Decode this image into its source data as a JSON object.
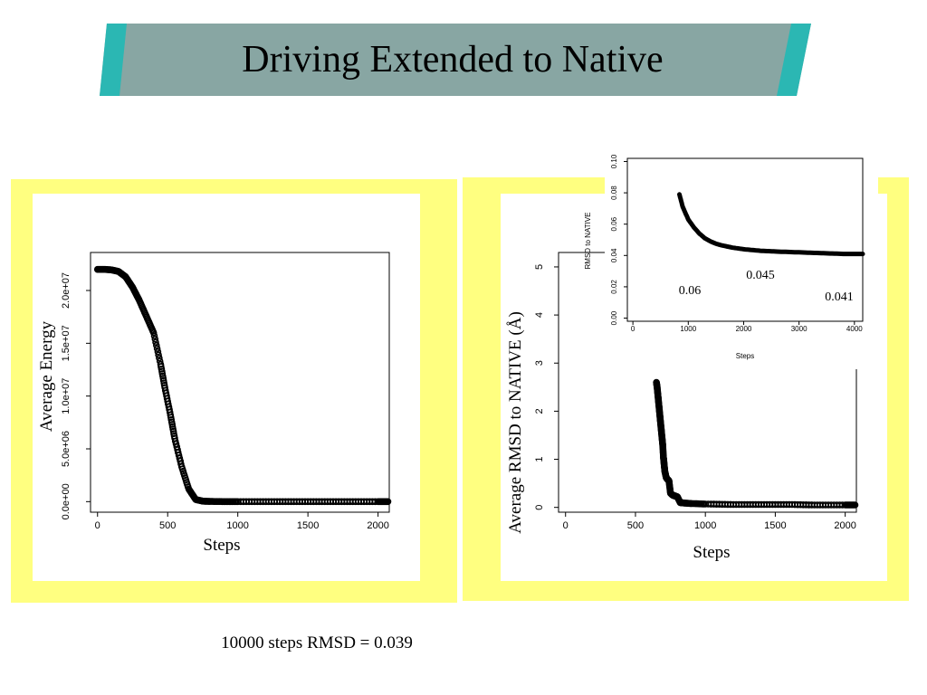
{
  "slide": {
    "title": "Driving Extended to Native",
    "caption": "10000 steps RMSD = 0.039",
    "colors": {
      "banner": "#88a6a3",
      "banner_accent": "#2bb7b3",
      "panel": "#ffff80"
    }
  },
  "chart_data": [
    {
      "type": "scatter",
      "title": "",
      "xlabel": "Steps",
      "ylabel": "Average Energy",
      "xlim": [
        -50,
        2080
      ],
      "ylim": [
        -1000000,
        23600000
      ],
      "xticks": [
        0,
        500,
        1000,
        1500,
        2000
      ],
      "xtick_labels": [
        "0",
        "500",
        "1000",
        "1500",
        "2000"
      ],
      "yticks": [
        0,
        5000000,
        10000000,
        15000000,
        20000000
      ],
      "ytick_labels": [
        "0.0e+00",
        "5.0e+06",
        "1.0e+07",
        "1.5e+07",
        "2.0e+07"
      ],
      "grid": false,
      "series": [
        {
          "x": [
            0,
            50,
            100,
            150,
            200,
            250,
            300,
            350,
            400,
            450,
            480,
            520,
            550,
            600,
            650,
            700,
            750,
            800,
            900,
            1000,
            1200,
            1400,
            1600,
            1800,
            2000,
            2070
          ],
          "y": [
            22000000,
            22000000,
            21950000,
            21800000,
            21300000,
            20300000,
            19000000,
            17500000,
            16000000,
            13000000,
            10800000,
            8200000,
            6000000,
            3300000,
            1200000,
            200000,
            50000,
            20000,
            5000,
            0,
            0,
            0,
            0,
            0,
            0,
            0
          ]
        }
      ]
    },
    {
      "type": "scatter",
      "title": "",
      "xlabel": "Steps",
      "ylabel": "Average RMSD to NATIVE (Å)",
      "xlim": [
        -50,
        2080
      ],
      "ylim": [
        -0.1,
        5.3
      ],
      "xticks": [
        0,
        500,
        1000,
        1500,
        2000
      ],
      "xtick_labels": [
        "0",
        "500",
        "1000",
        "1500",
        "2000"
      ],
      "yticks": [
        0,
        1,
        2,
        3,
        4,
        5
      ],
      "ytick_labels": [
        "0",
        "1",
        "2",
        "3",
        "4",
        "5"
      ],
      "grid": false,
      "series": [
        {
          "x": [
            650,
            655,
            660,
            665,
            670,
            675,
            680,
            685,
            690,
            695,
            700,
            705,
            710,
            720,
            730,
            740,
            750,
            760,
            770,
            780,
            800,
            820,
            850,
            900,
            1000,
            1200,
            1400,
            1600,
            1800,
            2000,
            2070
          ],
          "y": [
            2.6,
            2.5,
            2.35,
            2.2,
            2.05,
            1.9,
            1.75,
            1.6,
            1.45,
            1.3,
            1.05,
            0.9,
            0.75,
            0.62,
            0.58,
            0.55,
            0.3,
            0.27,
            0.25,
            0.24,
            0.22,
            0.1,
            0.09,
            0.08,
            0.07,
            0.06,
            0.06,
            0.06,
            0.05,
            0.05,
            0.05
          ]
        }
      ]
    },
    {
      "type": "line",
      "title": "",
      "xlabel": "Steps",
      "ylabel": "RMSD to NATIVE",
      "xlim": [
        -100,
        4150
      ],
      "ylim": [
        -0.002,
        0.102
      ],
      "xticks": [
        0,
        1000,
        2000,
        3000,
        4000
      ],
      "xtick_labels": [
        "0",
        "1000",
        "2000",
        "3000",
        "4000"
      ],
      "yticks": [
        0,
        0.02,
        0.04,
        0.06,
        0.08,
        0.1
      ],
      "ytick_labels": [
        "0.00",
        "0.02",
        "0.04",
        "0.06",
        "0.08",
        "0.10"
      ],
      "grid": false,
      "annotations": [
        "0.06",
        "0.045",
        "0.041"
      ],
      "series": [
        {
          "x": [
            840,
            900,
            1000,
            1100,
            1200,
            1300,
            1400,
            1500,
            1600,
            1800,
            2000,
            2300,
            2600,
            3000,
            3400,
            3800,
            4150
          ],
          "y": [
            0.079,
            0.071,
            0.063,
            0.058,
            0.054,
            0.051,
            0.049,
            0.0475,
            0.0465,
            0.045,
            0.044,
            0.043,
            0.0425,
            0.042,
            0.0415,
            0.041,
            0.041
          ]
        }
      ]
    }
  ]
}
